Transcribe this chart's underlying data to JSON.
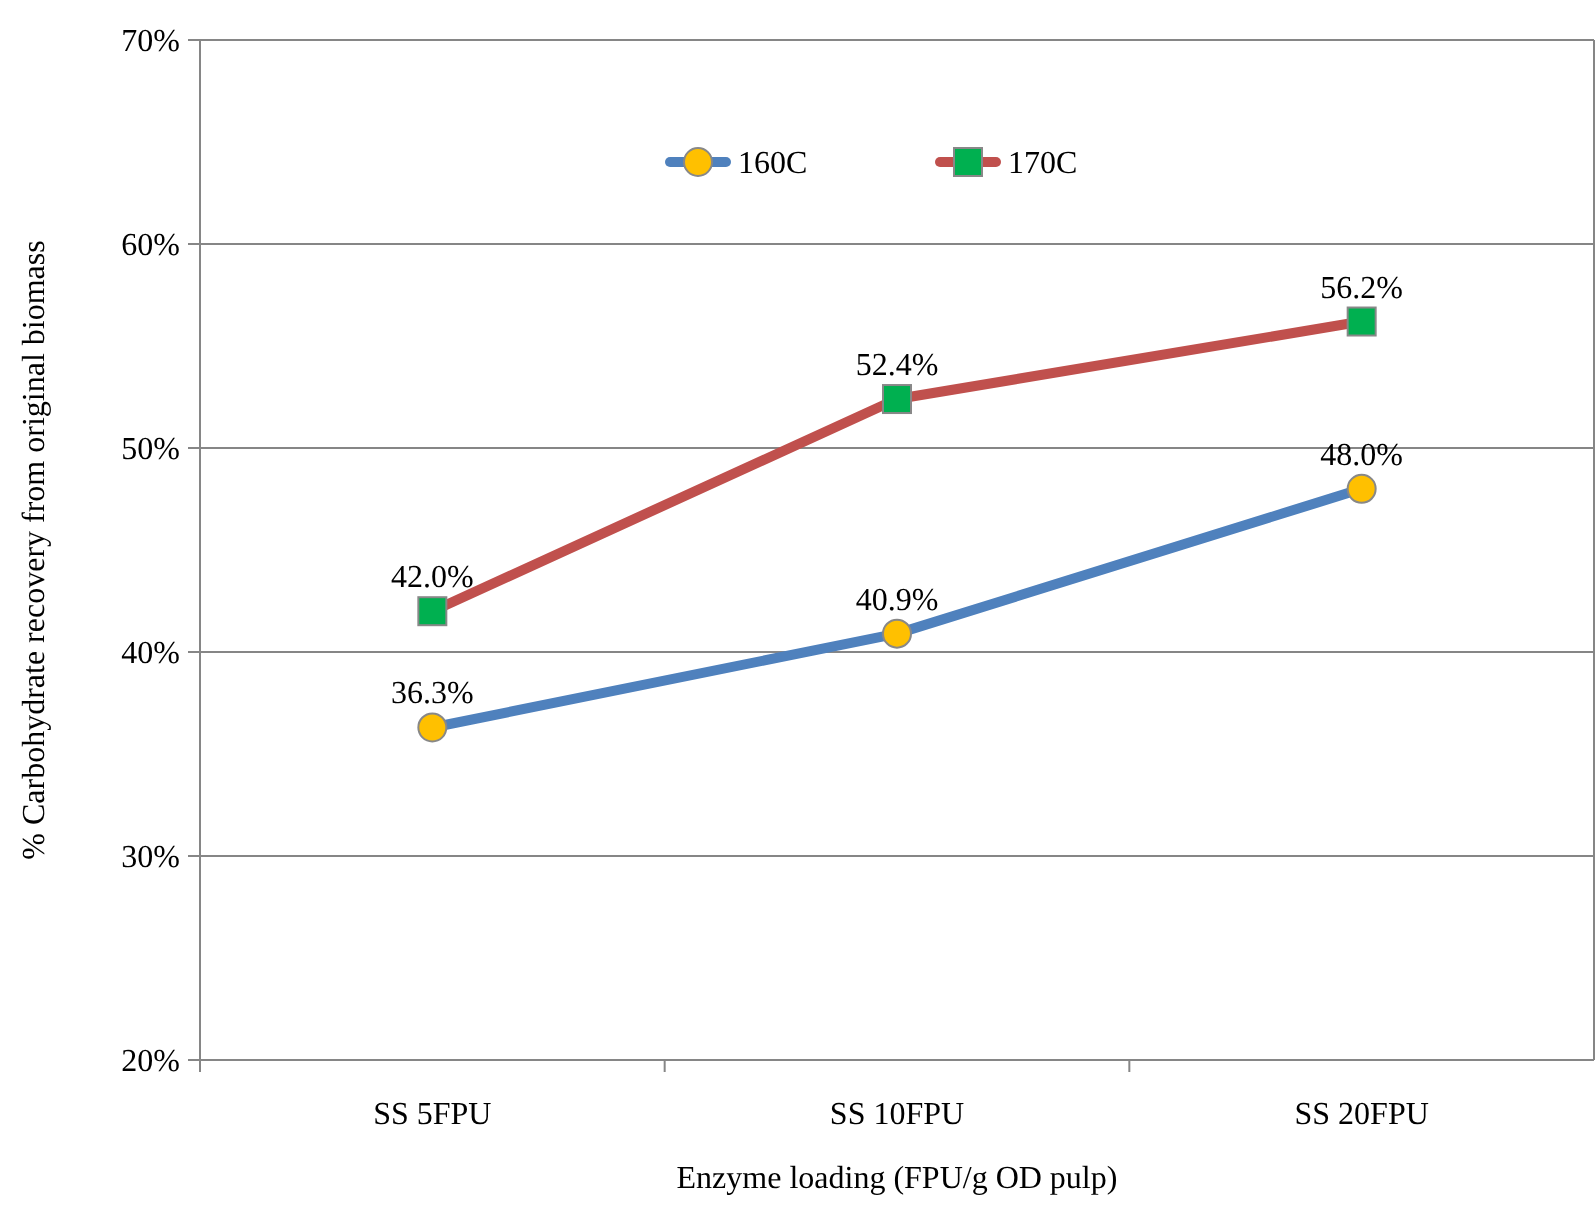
{
  "chart_data": {
    "type": "line",
    "xlabel": "Enzyme loading (FPU/g OD pulp)",
    "ylabel": "% Carbohydrate recovery from original biomass",
    "categories": [
      "SS 5FPU",
      "SS 10FPU",
      "SS 20FPU"
    ],
    "series": [
      {
        "name": "160C",
        "color": "#4f81bd",
        "colors": [
          "#ffc000",
          "#ffc000",
          "#ffc000"
        ],
        "marker": "circle",
        "values": [
          36.3,
          40.9,
          48.0
        ],
        "value_labels": [
          "36.3%",
          "40.9%",
          "48.0%"
        ]
      },
      {
        "name": "170C",
        "color": "#c0504d",
        "colors": [
          "#00b050",
          "#00b050",
          "#00b050"
        ],
        "marker": "square",
        "values": [
          42.0,
          52.4,
          56.2
        ],
        "value_labels": [
          "42.0%",
          "52.4%",
          "56.2%"
        ]
      }
    ],
    "ylim": [
      20,
      70
    ],
    "yticks": [
      {
        "value": 20,
        "label": "20%"
      },
      {
        "value": 30,
        "label": "30%"
      },
      {
        "value": 40,
        "label": "40%"
      },
      {
        "value": 50,
        "label": "50%"
      },
      {
        "value": 60,
        "label": "60%"
      },
      {
        "value": 70,
        "label": "70%"
      }
    ],
    "grid": "y",
    "legend": "top",
    "line_style": "solid"
  }
}
